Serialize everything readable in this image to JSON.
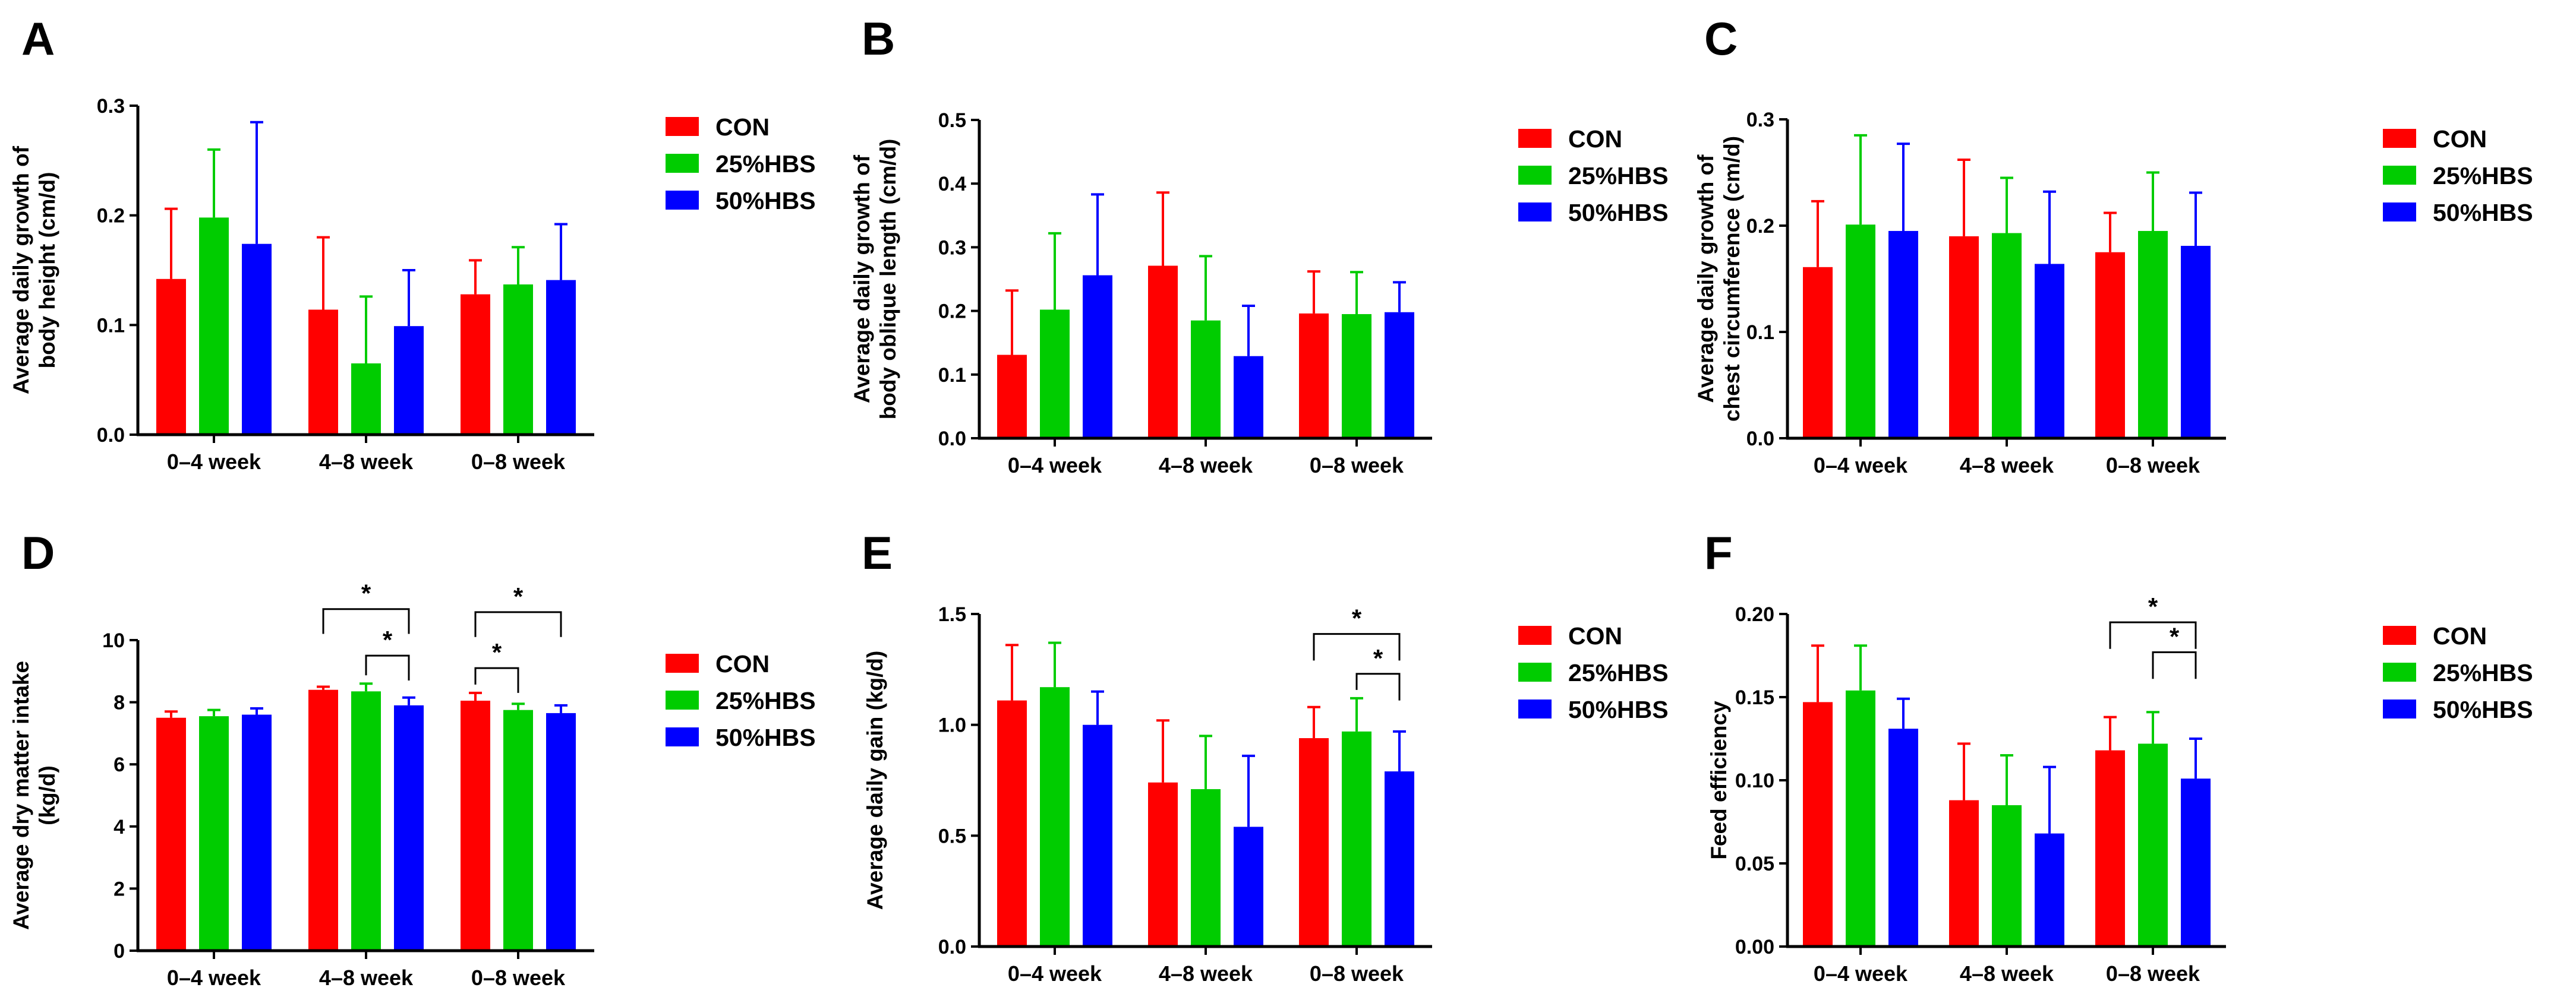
{
  "colors": {
    "CON": "#FF0000",
    "25%HBS": "#00CC00",
    "50%HBS": "#0000FF",
    "axis": "#000000"
  },
  "legend": [
    "CON",
    "25%HBS",
    "50%HBS"
  ],
  "chart_data": [
    {
      "panel": "A",
      "type": "bar",
      "ylabel_lines": [
        "Average daily growth of",
        "body height (cm/d)"
      ],
      "categories": [
        "0–4 week",
        "4–8 week",
        "0–8 week"
      ],
      "ylim": [
        0,
        0.3
      ],
      "yticks": [
        0.0,
        0.1,
        0.2,
        0.3
      ],
      "tick_decimals": 1,
      "series": [
        {
          "name": "CON",
          "values": [
            0.142,
            0.114,
            0.128
          ],
          "errors": [
            0.064,
            0.066,
            0.031
          ]
        },
        {
          "name": "25%HBS",
          "values": [
            0.198,
            0.065,
            0.137
          ],
          "errors": [
            0.062,
            0.061,
            0.034
          ]
        },
        {
          "name": "50%HBS",
          "values": [
            0.174,
            0.099,
            0.141
          ],
          "errors": [
            0.111,
            0.051,
            0.051
          ]
        }
      ],
      "significance": []
    },
    {
      "panel": "B",
      "type": "bar",
      "ylabel_lines": [
        "Average daily growth of",
        "body oblique length (cm/d)"
      ],
      "categories": [
        "0–4 week",
        "4–8 week",
        "0–8 week"
      ],
      "ylim": [
        0,
        0.5
      ],
      "yticks": [
        0.0,
        0.1,
        0.2,
        0.3,
        0.4,
        0.5
      ],
      "tick_decimals": 1,
      "series": [
        {
          "name": "CON",
          "values": [
            0.131,
            0.271,
            0.196
          ],
          "errors": [
            0.101,
            0.115,
            0.066
          ]
        },
        {
          "name": "25%HBS",
          "values": [
            0.202,
            0.185,
            0.195
          ],
          "errors": [
            0.12,
            0.101,
            0.066
          ]
        },
        {
          "name": "50%HBS",
          "values": [
            0.256,
            0.129,
            0.198
          ],
          "errors": [
            0.127,
            0.079,
            0.047
          ]
        }
      ],
      "significance": []
    },
    {
      "panel": "C",
      "type": "bar",
      "ylabel_lines": [
        "Average daily growth of",
        "chest circumference (cm/d)"
      ],
      "categories": [
        "0–4 week",
        "4–8 week",
        "0–8 week"
      ],
      "ylim": [
        0,
        0.3
      ],
      "yticks": [
        0.0,
        0.1,
        0.2,
        0.3
      ],
      "tick_decimals": 1,
      "series": [
        {
          "name": "CON",
          "values": [
            0.161,
            0.19,
            0.175
          ],
          "errors": [
            0.062,
            0.072,
            0.037
          ]
        },
        {
          "name": "25%HBS",
          "values": [
            0.201,
            0.193,
            0.195
          ],
          "errors": [
            0.084,
            0.052,
            0.055
          ]
        },
        {
          "name": "50%HBS",
          "values": [
            0.195,
            0.164,
            0.181
          ],
          "errors": [
            0.082,
            0.068,
            0.05
          ]
        }
      ],
      "significance": []
    },
    {
      "panel": "D",
      "type": "bar",
      "ylabel_lines": [
        "Average dry matter intake",
        "(kg/d)"
      ],
      "categories": [
        "0–4 week",
        "4–8 week",
        "0–8 week"
      ],
      "ylim": [
        0,
        10
      ],
      "yticks": [
        0,
        2,
        4,
        6,
        8,
        10
      ],
      "tick_decimals": 0,
      "series": [
        {
          "name": "CON",
          "values": [
            7.5,
            8.4,
            8.05
          ],
          "errors": [
            0.2,
            0.1,
            0.25
          ]
        },
        {
          "name": "25%HBS",
          "values": [
            7.55,
            8.35,
            7.75
          ],
          "errors": [
            0.2,
            0.25,
            0.2
          ]
        },
        {
          "name": "50%HBS",
          "values": [
            7.6,
            7.9,
            7.65
          ],
          "errors": [
            0.2,
            0.25,
            0.25
          ]
        }
      ],
      "significance": [
        {
          "category": 1,
          "from": 0,
          "to": 2,
          "y": 11.0,
          "label": "*"
        },
        {
          "category": 1,
          "from": 1,
          "to": 2,
          "y": 9.5,
          "label": "*"
        },
        {
          "category": 2,
          "from": 0,
          "to": 2,
          "y": 10.9,
          "label": "*"
        },
        {
          "category": 2,
          "from": 0,
          "to": 1,
          "y": 9.1,
          "label": "*"
        }
      ]
    },
    {
      "panel": "E",
      "type": "bar",
      "ylabel_lines": [
        "Average daily gain (kg/d)"
      ],
      "categories": [
        "0–4 week",
        "4–8 week",
        "0–8 week"
      ],
      "ylim": [
        0,
        1.5
      ],
      "yticks": [
        0.0,
        0.5,
        1.0,
        1.5
      ],
      "tick_decimals": 1,
      "series": [
        {
          "name": "CON",
          "values": [
            1.11,
            0.74,
            0.94
          ],
          "errors": [
            0.25,
            0.28,
            0.14
          ]
        },
        {
          "name": "25%HBS",
          "values": [
            1.17,
            0.71,
            0.97
          ],
          "errors": [
            0.2,
            0.24,
            0.15
          ]
        },
        {
          "name": "50%HBS",
          "values": [
            1.0,
            0.54,
            0.79
          ],
          "errors": [
            0.15,
            0.32,
            0.18
          ]
        }
      ],
      "significance": [
        {
          "category": 2,
          "from": 0,
          "to": 2,
          "y": 1.41,
          "label": "*"
        },
        {
          "category": 2,
          "from": 1,
          "to": 2,
          "y": 1.23,
          "label": "*"
        }
      ]
    },
    {
      "panel": "F",
      "type": "bar",
      "ylabel_lines": [
        "Feed efficiency"
      ],
      "categories": [
        "0–4 week",
        "4–8 week",
        "0–8 week"
      ],
      "ylim": [
        0,
        0.2
      ],
      "yticks": [
        0.0,
        0.05,
        0.1,
        0.15,
        0.2
      ],
      "tick_decimals": 2,
      "series": [
        {
          "name": "CON",
          "values": [
            0.147,
            0.088,
            0.118
          ],
          "errors": [
            0.034,
            0.034,
            0.02
          ]
        },
        {
          "name": "25%HBS",
          "values": [
            0.154,
            0.085,
            0.122
          ],
          "errors": [
            0.027,
            0.03,
            0.019
          ]
        },
        {
          "name": "50%HBS",
          "values": [
            0.131,
            0.068,
            0.101
          ],
          "errors": [
            0.018,
            0.04,
            0.024
          ]
        }
      ],
      "significance": [
        {
          "category": 2,
          "from": 0,
          "to": 2,
          "y": 0.195,
          "label": "*"
        },
        {
          "category": 2,
          "from": 1,
          "to": 2,
          "y": 0.177,
          "label": "*"
        }
      ]
    }
  ]
}
